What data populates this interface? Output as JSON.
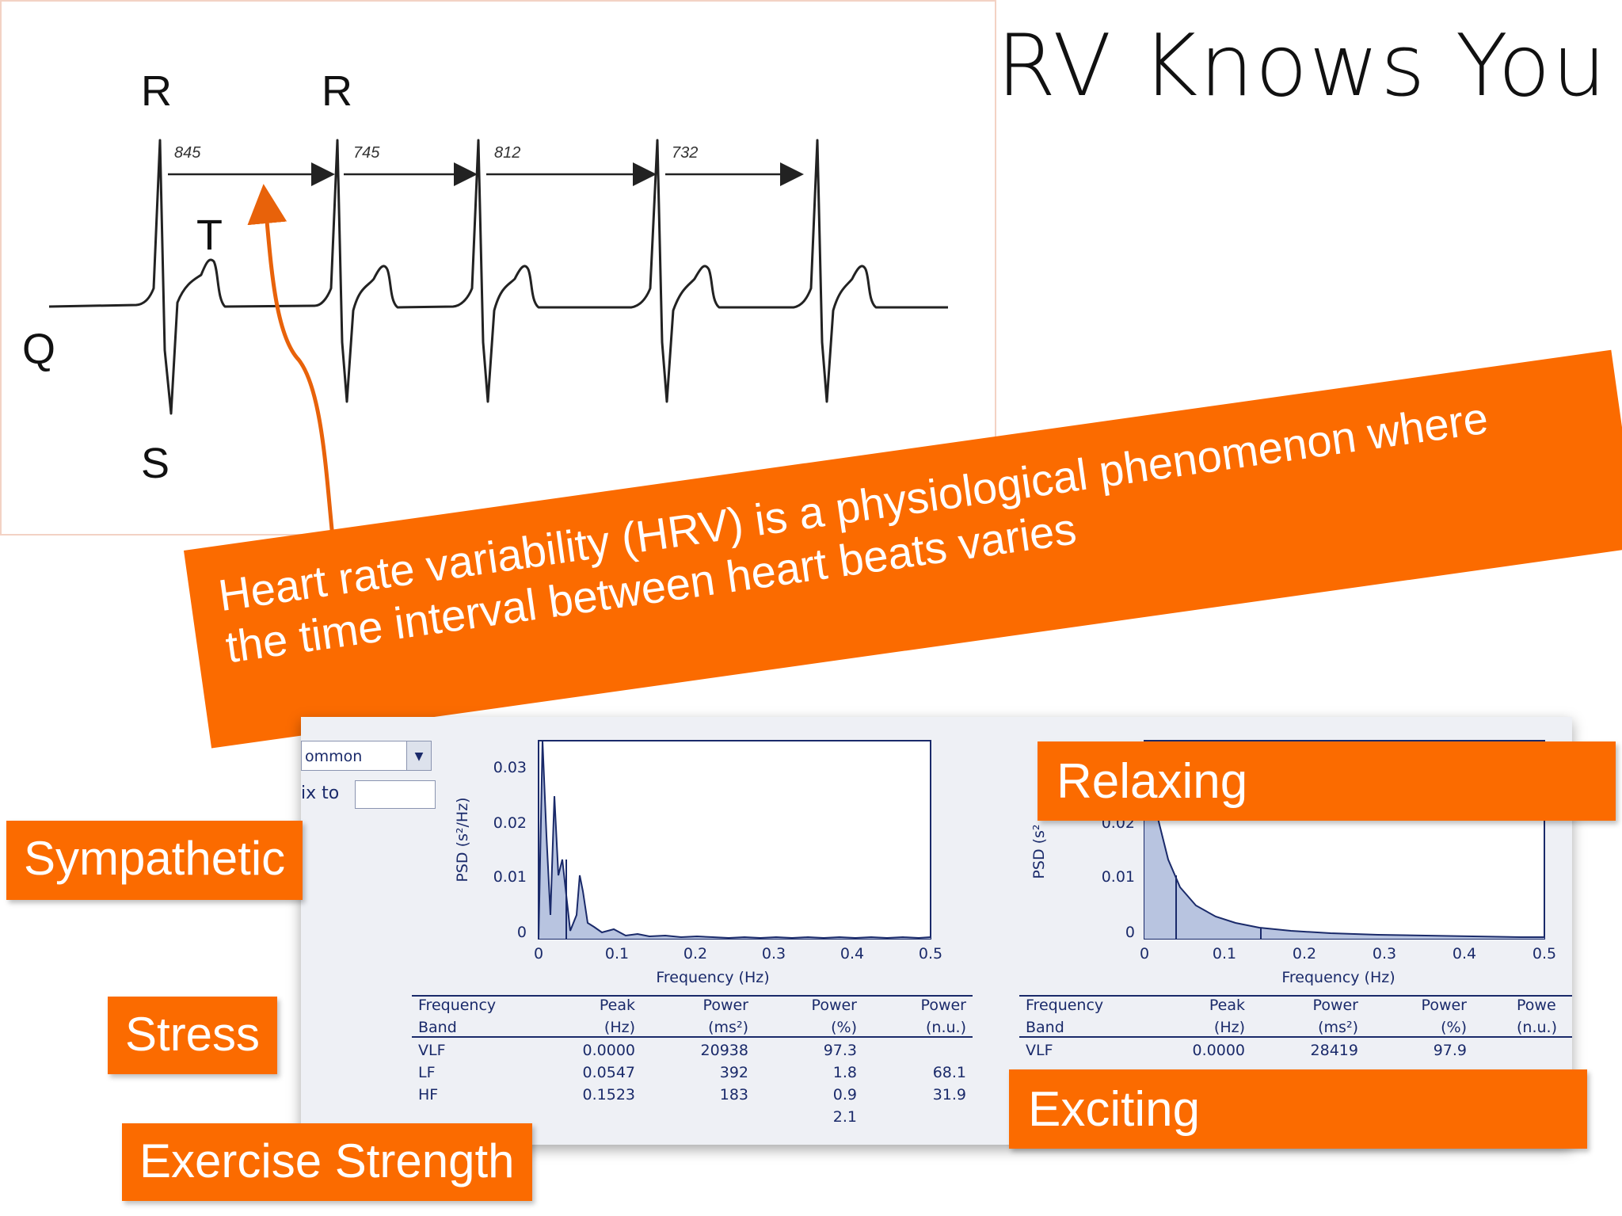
{
  "title": "HRV Knows You",
  "ecg": {
    "labels": {
      "r1": "R",
      "r2": "R",
      "t": "T",
      "q": "Q",
      "s": "S"
    },
    "intervals": [
      "845",
      "745",
      "812",
      "732"
    ]
  },
  "banner": {
    "line1": "Heart rate variability (HRV) is a physiological phenomenon where",
    "line2": "the time interval between heart beats varies"
  },
  "tags": {
    "sympathetic": "Sympathetic",
    "stress": "Stress",
    "exercise": "Exercise Strength",
    "relaxing": "Relaxing",
    "exciting": "Exciting"
  },
  "software": {
    "dropdown_value": "ommon",
    "fix_label": "ix to",
    "left_plot": {
      "ylabel": "PSD (s²/Hz)",
      "xlabel": "Frequency (Hz)",
      "yticks": [
        "0.03",
        "0.02",
        "0.01",
        "0"
      ],
      "xticks": [
        "0",
        "0.1",
        "0.2",
        "0.3",
        "0.4",
        "0.5"
      ]
    },
    "right_plot": {
      "ylabel": "PSD (s²",
      "xlabel": "Frequency (Hz)",
      "yticks": [
        "0.02",
        "0.01",
        "0"
      ],
      "xticks": [
        "0",
        "0.1",
        "0.2",
        "0.3",
        "0.4",
        "0.5"
      ]
    },
    "left_table": {
      "headers": [
        [
          "Frequency",
          "Band"
        ],
        [
          "Peak",
          "(Hz)"
        ],
        [
          "Power",
          "(ms²)"
        ],
        [
          "Power",
          "(%)"
        ],
        [
          "Power",
          "(n.u.)"
        ]
      ],
      "rows": [
        [
          "VLF",
          "0.0000",
          "20938",
          "97.3",
          ""
        ],
        [
          "LF",
          "0.0547",
          "392",
          "1.8",
          "68.1"
        ],
        [
          "HF",
          "0.1523",
          "183",
          "0.9",
          "31.9"
        ],
        [
          "",
          "",
          "",
          "2.1",
          ""
        ]
      ]
    },
    "right_table": {
      "headers": [
        [
          "Frequency",
          "Band"
        ],
        [
          "Peak",
          "(Hz)"
        ],
        [
          "Power",
          "(ms²)"
        ],
        [
          "Power",
          "(%)"
        ],
        [
          "Powe",
          "(n.u.)"
        ]
      ],
      "rows": [
        [
          "VLF",
          "0.0000",
          "28419",
          "97.9",
          ""
        ]
      ]
    }
  },
  "colors": {
    "accent": "#fb6b00",
    "plot_line": "#1a2a6a",
    "plot_fill": "#b8c4e0",
    "ecg_line": "#222222",
    "arrow": "#e8620a"
  }
}
